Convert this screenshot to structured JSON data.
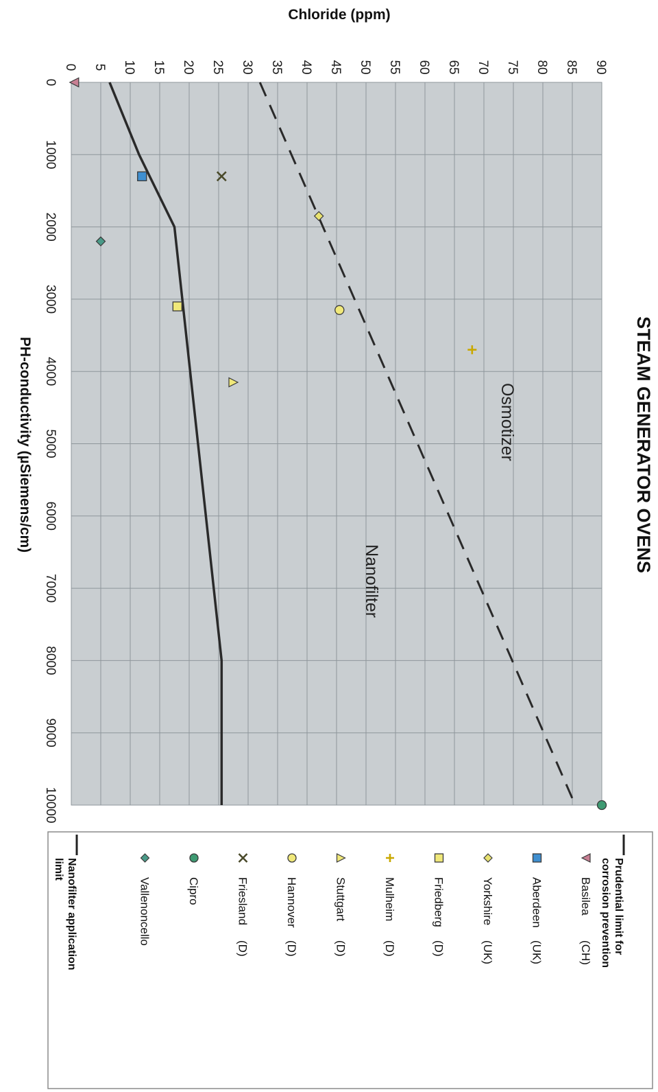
{
  "chart_data": {
    "type": "scatter",
    "title": "STEAM GENERATOR OVENS",
    "xlabel": "PH-conductivity (µSiemens/cm)",
    "ylabel": "Chloride (ppm)",
    "xlim": [
      0,
      10000
    ],
    "ylim": [
      0,
      90
    ],
    "x_ticks": [
      "0",
      "1000",
      "2000",
      "3000",
      "4000",
      "5000",
      "6000",
      "7000",
      "8000",
      "9000",
      "10000"
    ],
    "y_ticks": [
      "0",
      "5",
      "10",
      "15",
      "20",
      "25",
      "30",
      "35",
      "40",
      "45",
      "50",
      "55",
      "60",
      "65",
      "70",
      "75",
      "80",
      "85",
      "90"
    ],
    "grid": true,
    "orientation": "rotated 90° clockwise",
    "lines": [
      {
        "name": "Prudential limit for corrosion prevention",
        "style": "dashed",
        "color": "#2a2a2a",
        "points": [
          [
            0,
            32
          ],
          [
            10000,
            85.5
          ]
        ]
      },
      {
        "name": "Nanofilter application limit",
        "style": "solid",
        "color": "#2a2a2a",
        "points": [
          [
            0,
            6.5
          ],
          [
            1000,
            11.5
          ],
          [
            2000,
            17.5
          ],
          [
            8000,
            25.5
          ],
          [
            10000,
            25.5
          ]
        ]
      }
    ],
    "series": [
      {
        "name": "Basilea",
        "country": "(CH)",
        "marker": "triangle-up",
        "color": "#c87f93",
        "points": [
          [
            0,
            0.5
          ]
        ]
      },
      {
        "name": "Aberdeen",
        "country": "(UK)",
        "marker": "square",
        "color": "#3f8fd0",
        "points": [
          [
            1300,
            12
          ]
        ]
      },
      {
        "name": "Yorkshire",
        "country": "(UK)",
        "marker": "diamond",
        "color": "#e8e270",
        "points": [
          [
            1850,
            42
          ]
        ]
      },
      {
        "name": "Friedberg",
        "country": "(D)",
        "marker": "square",
        "color": "#f0e87a",
        "points": [
          [
            3100,
            18
          ]
        ]
      },
      {
        "name": "Mulheim",
        "country": "(D)",
        "marker": "plus",
        "color": "#e8d030",
        "points": [
          [
            3700,
            68
          ]
        ]
      },
      {
        "name": "Stuttgart",
        "country": "(D)",
        "marker": "triangle-right",
        "color": "#f0e87a",
        "points": [
          [
            4150,
            27.5
          ]
        ]
      },
      {
        "name": "Hannover",
        "country": "(D)",
        "marker": "circle",
        "color": "#f0e87a",
        "points": [
          [
            3150,
            45.5
          ]
        ]
      },
      {
        "name": "Friesland",
        "country": "(D)",
        "marker": "x",
        "color": "#4a4a2a",
        "points": [
          [
            1300,
            25.5
          ]
        ]
      },
      {
        "name": "Cipro",
        "country": "",
        "marker": "circle",
        "color": "#3e9a72",
        "points": [
          [
            10000,
            90
          ]
        ]
      },
      {
        "name": "Vallenoncello",
        "country": "",
        "marker": "diamond",
        "color": "#4a9a88",
        "points": [
          [
            2200,
            5
          ]
        ]
      }
    ],
    "annotations": [
      {
        "text": "Osmotizer",
        "x": 4700,
        "y": 73
      },
      {
        "text": "Nanofilter",
        "x": 6900,
        "y": 50
      }
    ],
    "legend": {
      "placement": "right",
      "line_labels": [
        "Prudential limit for corrosion prevention",
        "Nanofilter application limit"
      ]
    }
  }
}
